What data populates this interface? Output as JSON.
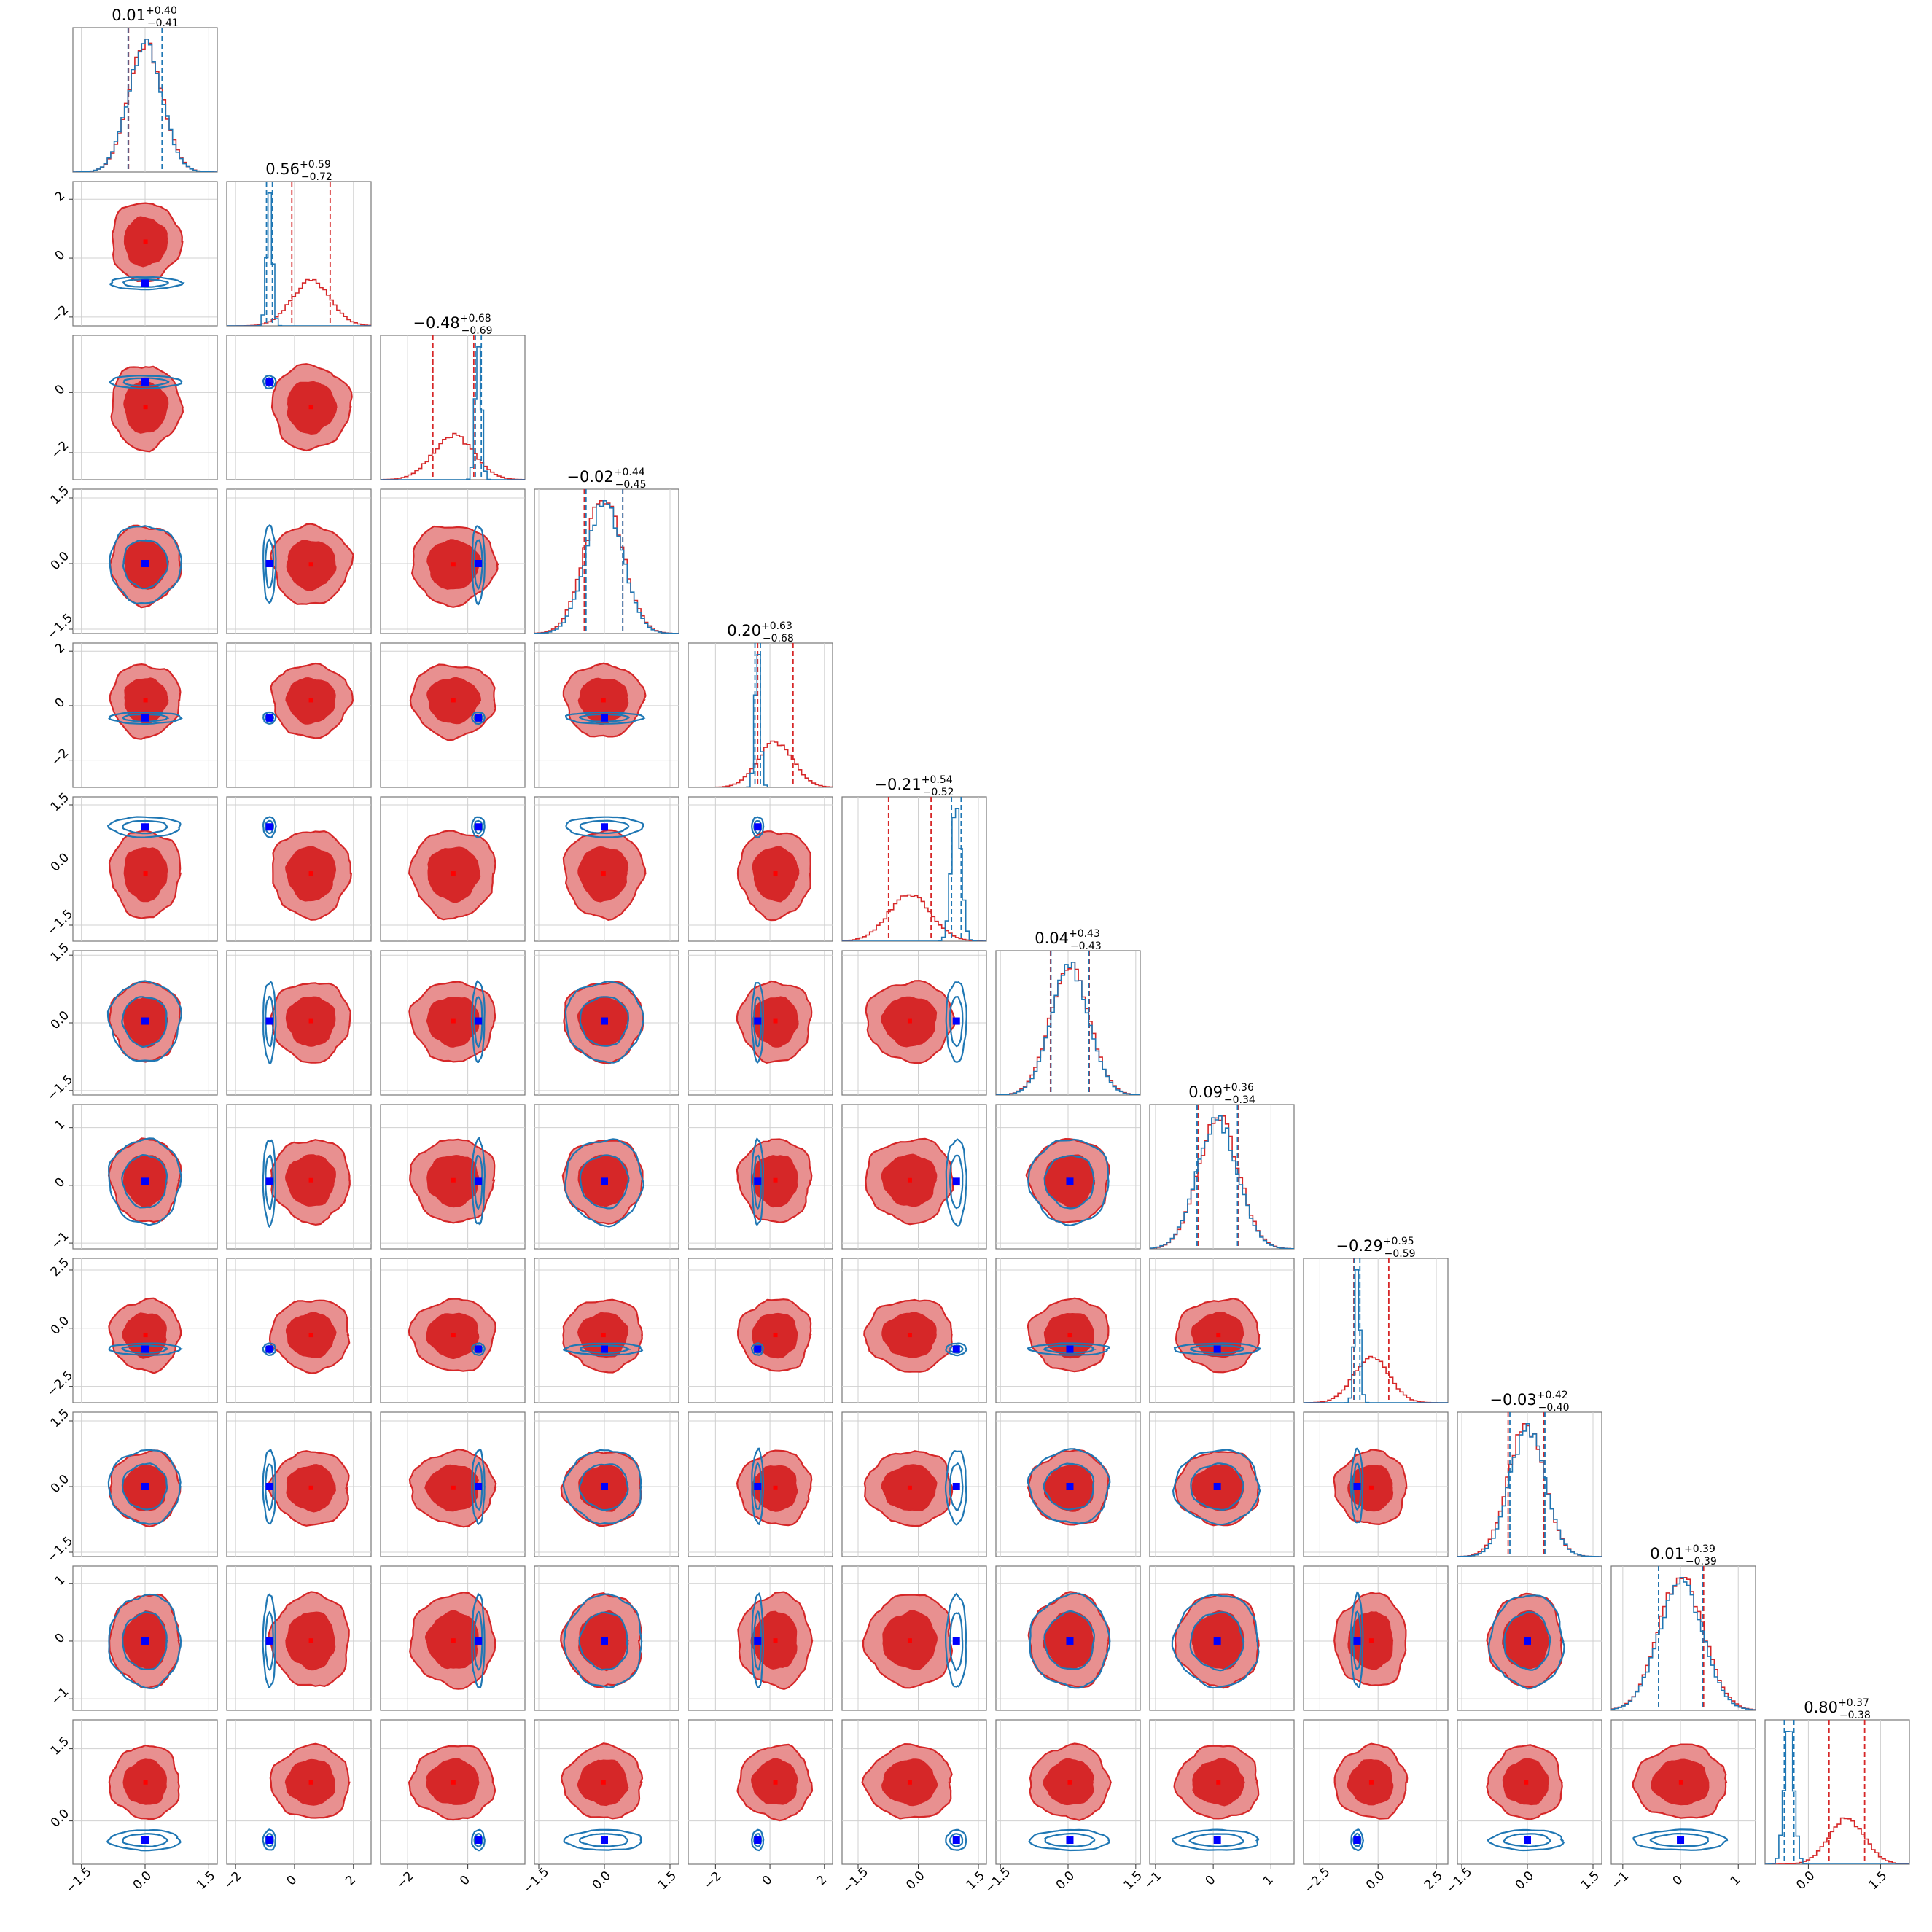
{
  "chart_data": {
    "type": "corner",
    "n_params": 12,
    "series": [
      {
        "name": "",
        "color": "#d62728",
        "fill": "#e89090"
      },
      {
        "name": "",
        "color": "#1f77b4"
      }
    ],
    "marker_colors": {
      "blue": "#0000ff",
      "red": "#ff0000"
    },
    "titles": [
      {
        "value": "0.01",
        "plus": "+0.40",
        "minus": "−0.41"
      },
      {
        "value": "0.56",
        "plus": "+0.59",
        "minus": "−0.72"
      },
      {
        "value": "−0.48",
        "plus": "+0.68",
        "minus": "−0.69"
      },
      {
        "value": "−0.02",
        "plus": "+0.44",
        "minus": "−0.45"
      },
      {
        "value": "0.20",
        "plus": "+0.63",
        "minus": "−0.68"
      },
      {
        "value": "−0.21",
        "plus": "+0.54",
        "minus": "−0.52"
      },
      {
        "value": "0.04",
        "plus": "+0.43",
        "minus": "−0.43"
      },
      {
        "value": "0.09",
        "plus": "+0.36",
        "minus": "−0.34"
      },
      {
        "value": "−0.29",
        "plus": "+0.95",
        "minus": "−0.59"
      },
      {
        "value": "−0.03",
        "plus": "+0.42",
        "minus": "−0.40"
      },
      {
        "value": "0.01",
        "plus": "+0.39",
        "minus": "−0.39"
      },
      {
        "value": "0.80",
        "plus": "+0.37",
        "minus": "−0.38"
      }
    ],
    "params": [
      {
        "red_median": 0.01,
        "red_sigma": 0.4,
        "blue_median": 0.0,
        "blue_sigma": 0.4,
        "range": [
          -1.7,
          1.7
        ]
      },
      {
        "red_median": 0.56,
        "red_sigma": 0.65,
        "blue_median": -0.85,
        "blue_sigma": 0.1,
        "range": [
          -2.3,
          2.6
        ]
      },
      {
        "red_median": -0.48,
        "red_sigma": 0.68,
        "blue_median": 0.35,
        "blue_sigma": 0.1,
        "range": [
          -2.9,
          1.9
        ]
      },
      {
        "red_median": -0.02,
        "red_sigma": 0.44,
        "blue_median": 0.0,
        "blue_sigma": 0.42,
        "range": [
          -1.6,
          1.7
        ]
      },
      {
        "red_median": 0.2,
        "red_sigma": 0.65,
        "blue_median": -0.45,
        "blue_sigma": 0.1,
        "range": [
          -3.0,
          2.3
        ]
      },
      {
        "red_median": -0.21,
        "red_sigma": 0.53,
        "blue_median": 0.95,
        "blue_sigma": 0.12,
        "range": [
          -1.9,
          1.7
        ]
      },
      {
        "red_median": 0.04,
        "red_sigma": 0.43,
        "blue_median": 0.04,
        "blue_sigma": 0.42,
        "range": [
          -1.6,
          1.6
        ]
      },
      {
        "red_median": 0.09,
        "red_sigma": 0.35,
        "blue_median": 0.07,
        "blue_sigma": 0.35,
        "range": [
          -1.1,
          1.4
        ]
      },
      {
        "red_median": -0.29,
        "red_sigma": 0.75,
        "blue_median": -0.9,
        "blue_sigma": 0.12,
        "range": [
          -3.2,
          3.0
        ]
      },
      {
        "red_median": -0.03,
        "red_sigma": 0.41,
        "blue_median": 0.0,
        "blue_sigma": 0.4,
        "range": [
          -1.6,
          1.7
        ]
      },
      {
        "red_median": 0.01,
        "red_sigma": 0.39,
        "blue_median": 0.0,
        "blue_sigma": 0.38,
        "range": [
          -1.2,
          1.3
        ]
      },
      {
        "red_median": 0.8,
        "red_sigma": 0.37,
        "blue_median": -0.4,
        "blue_sigma": 0.1,
        "range": [
          -0.9,
          2.1
        ]
      }
    ],
    "ticks": [
      {
        "values": [
          -1.5,
          0.0,
          1.5
        ],
        "labels": [
          "−1.5",
          "0.0",
          "1.5"
        ]
      },
      {
        "values": [
          -2,
          0,
          2
        ],
        "labels": [
          "−2",
          "0",
          "2"
        ]
      },
      {
        "values": [
          -2,
          0,
          2
        ],
        "labels": [
          "−2",
          "0",
          "2"
        ]
      },
      {
        "values": [
          -1.5,
          0.0,
          1.5
        ],
        "labels": [
          "−1.5",
          "0.0",
          "1.5"
        ]
      },
      {
        "values": [
          -2,
          0,
          2
        ],
        "labels": [
          "−2",
          "0",
          "2"
        ]
      },
      {
        "values": [
          -1.5,
          0.0,
          1.5
        ],
        "labels": [
          "−1.5",
          "0.0",
          "1.5"
        ]
      },
      {
        "values": [
          -1.5,
          0.0,
          1.5
        ],
        "labels": [
          "−1.5",
          "0.0",
          "1.5"
        ]
      },
      {
        "values": [
          -1,
          0,
          1
        ],
        "labels": [
          "−1",
          "0",
          "1"
        ]
      },
      {
        "values": [
          -2.5,
          0.0,
          2.5
        ],
        "labels": [
          "−2.5",
          "0.0",
          "2.5"
        ]
      },
      {
        "values": [
          -1.5,
          0.0,
          1.5
        ],
        "labels": [
          "−1.5",
          "0.0",
          "1.5"
        ]
      },
      {
        "values": [
          -1,
          0,
          1
        ],
        "labels": [
          "−1",
          "0",
          "1"
        ]
      },
      {
        "values": [
          0.0,
          1.5
        ],
        "labels": [
          "0.0",
          "1.5"
        ]
      }
    ],
    "grid": true,
    "legend": "none"
  }
}
